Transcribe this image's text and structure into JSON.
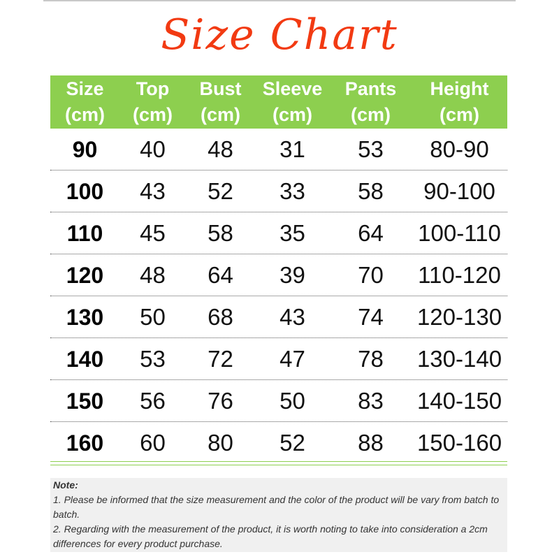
{
  "title": "Size Chart",
  "headers": [
    [
      "Size",
      "(cm)"
    ],
    [
      "Top",
      "(cm)"
    ],
    [
      "Bust",
      "(cm)"
    ],
    [
      "Sleeve",
      "(cm)"
    ],
    [
      "Pants",
      "(cm)"
    ],
    [
      "Height",
      "(cm)"
    ]
  ],
  "rows": [
    [
      "90",
      "40",
      "48",
      "31",
      "53",
      "80-90"
    ],
    [
      "100",
      "43",
      "52",
      "33",
      "58",
      "90-100"
    ],
    [
      "110",
      "45",
      "58",
      "35",
      "64",
      "100-110"
    ],
    [
      "120",
      "48",
      "64",
      "39",
      "70",
      "110-120"
    ],
    [
      "130",
      "50",
      "68",
      "43",
      "74",
      "120-130"
    ],
    [
      "140",
      "53",
      "72",
      "47",
      "78",
      "130-140"
    ],
    [
      "150",
      "56",
      "76",
      "50",
      "83",
      "140-150"
    ],
    [
      "160",
      "60",
      "80",
      "52",
      "88",
      "150-160"
    ]
  ],
  "note": {
    "label": "Note:",
    "line1": "1. Please be informed that the size measurement and the color of the product will be vary from batch to batch.",
    "line2": "2. Regarding with the measurement of the product, it is worth noting to take into consideration a 2cm differences for every product purchase."
  },
  "colors": {
    "title": "#f23a12",
    "header": "#8dcf4f"
  }
}
